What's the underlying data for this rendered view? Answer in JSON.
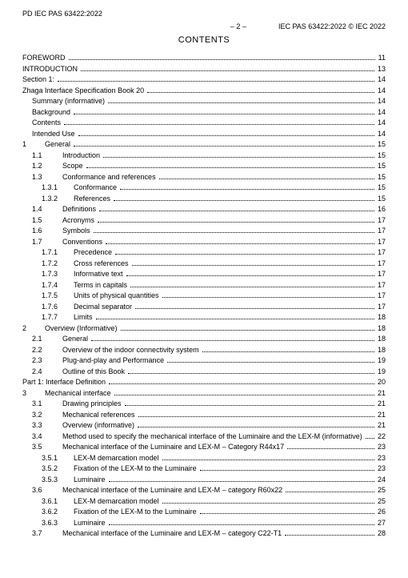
{
  "doc_header_left": "PD IEC PAS 63422:2022",
  "page_number_center": "– 2 –",
  "doc_header_right": "IEC PAS 63422:2022 © IEC 2022",
  "contents_title": "CONTENTS",
  "toc": [
    {
      "indent": 0,
      "num": "",
      "label": "FOREWORD",
      "page": "11"
    },
    {
      "indent": 0,
      "num": "",
      "label": "INTRODUCTION",
      "page": "13"
    },
    {
      "indent": 0,
      "num": "",
      "label": "Section 1:",
      "page": "14"
    },
    {
      "indent": 0,
      "num": "",
      "label": "Zhaga Interface Specification Book 20",
      "page": "14"
    },
    {
      "indent": 1,
      "num": "",
      "label": "Summary (informative)",
      "page": "14"
    },
    {
      "indent": 1,
      "num": "",
      "label": "Background",
      "page": "14"
    },
    {
      "indent": 1,
      "num": "",
      "label": "Contents",
      "page": "14"
    },
    {
      "indent": 1,
      "num": "",
      "label": "Intended Use",
      "page": "14"
    },
    {
      "indent": 0,
      "num": "1",
      "numClass": "num-w1",
      "label": "General",
      "page": "15"
    },
    {
      "indent": 1,
      "num": "1.1",
      "numClass": "num-w2",
      "label": "Introduction",
      "page": "15"
    },
    {
      "indent": 1,
      "num": "1.2",
      "numClass": "num-w2",
      "label": "Scope",
      "page": "15"
    },
    {
      "indent": 1,
      "num": "1.3",
      "numClass": "num-w2",
      "label": "Conformance and references",
      "page": "15"
    },
    {
      "indent": 2,
      "num": "1.3.1",
      "numClass": "num-w3",
      "label": "Conformance",
      "page": "15"
    },
    {
      "indent": 2,
      "num": "1.3.2",
      "numClass": "num-w3",
      "label": "References",
      "page": "15"
    },
    {
      "indent": 1,
      "num": "1.4",
      "numClass": "num-w2",
      "label": "Definitions",
      "page": "16"
    },
    {
      "indent": 1,
      "num": "1.5",
      "numClass": "num-w2",
      "label": "Acronyms",
      "page": "17"
    },
    {
      "indent": 1,
      "num": "1.6",
      "numClass": "num-w2",
      "label": "Symbols",
      "page": "17"
    },
    {
      "indent": 1,
      "num": "1.7",
      "numClass": "num-w2",
      "label": "Conventions",
      "page": "17"
    },
    {
      "indent": 2,
      "num": "1.7.1",
      "numClass": "num-w3",
      "label": "Precedence",
      "page": "17"
    },
    {
      "indent": 2,
      "num": "1.7.2",
      "numClass": "num-w3",
      "label": "Cross references",
      "page": "17"
    },
    {
      "indent": 2,
      "num": "1.7.3",
      "numClass": "num-w3",
      "label": "Informative text",
      "page": "17"
    },
    {
      "indent": 2,
      "num": "1.7.4",
      "numClass": "num-w3",
      "label": "Terms in capitals",
      "page": "17"
    },
    {
      "indent": 2,
      "num": "1.7.5",
      "numClass": "num-w3",
      "label": "Units of physical quantities",
      "page": "17"
    },
    {
      "indent": 2,
      "num": "1.7.6",
      "numClass": "num-w3",
      "label": "Decimal separator",
      "page": "17"
    },
    {
      "indent": 2,
      "num": "1.7.7",
      "numClass": "num-w3",
      "label": "Limits",
      "page": "18"
    },
    {
      "indent": 0,
      "num": "2",
      "numClass": "num-w1",
      "label": "Overview (Informative)",
      "page": "18"
    },
    {
      "indent": 1,
      "num": "2.1",
      "numClass": "num-w2",
      "label": "General",
      "page": "18"
    },
    {
      "indent": 1,
      "num": "2.2",
      "numClass": "num-w2",
      "label": "Overview of the indoor connectivity system",
      "page": "18"
    },
    {
      "indent": 1,
      "num": "2.3",
      "numClass": "num-w2",
      "label": "Plug-and-play and Performance",
      "page": "19"
    },
    {
      "indent": 1,
      "num": "2.4",
      "numClass": "num-w2",
      "label": "Outline of this Book",
      "page": "19"
    },
    {
      "indent": 0,
      "num": "",
      "label": "Part 1: Interface Definition",
      "page": "20"
    },
    {
      "indent": 0,
      "num": "3",
      "numClass": "num-w1",
      "label": "Mechanical interface",
      "page": "21"
    },
    {
      "indent": 1,
      "num": "3.1",
      "numClass": "num-w2",
      "label": "Drawing principles",
      "page": "21"
    },
    {
      "indent": 1,
      "num": "3.2",
      "numClass": "num-w2",
      "label": "Mechanical references",
      "page": "21"
    },
    {
      "indent": 1,
      "num": "3.3",
      "numClass": "num-w2",
      "label": "Overview (informative)",
      "page": "21"
    },
    {
      "indent": 1,
      "num": "3.4",
      "numClass": "num-w2",
      "label": "Method used to specify the mechanical interface of the Luminaire and the LEX-M (informative)",
      "page": "22"
    },
    {
      "indent": 1,
      "num": "3.5",
      "numClass": "num-w2",
      "label": "Mechanical interface of the Luminaire and LEX-M – Category R44x17",
      "page": "23"
    },
    {
      "indent": 2,
      "num": "3.5.1",
      "numClass": "num-w3",
      "label": "LEX-M demarcation model",
      "page": "23"
    },
    {
      "indent": 2,
      "num": "3.5.2",
      "numClass": "num-w3",
      "label": "Fixation of the LEX-M to the Luminaire",
      "page": "23"
    },
    {
      "indent": 2,
      "num": "3.5.3",
      "numClass": "num-w3",
      "label": "Luminaire",
      "page": "24"
    },
    {
      "indent": 1,
      "num": "3.6",
      "numClass": "num-w2",
      "label": "Mechanical interface of the Luminaire and LEX-M – category R60x22",
      "page": "25"
    },
    {
      "indent": 2,
      "num": "3.6.1",
      "numClass": "num-w3",
      "label": "LEX-M demarcation model",
      "page": "25"
    },
    {
      "indent": 2,
      "num": "3.6.2",
      "numClass": "num-w3",
      "label": "Fixation of the LEX-M to the Luminaire",
      "page": "26"
    },
    {
      "indent": 2,
      "num": "3.6.3",
      "numClass": "num-w3",
      "label": "Luminaire",
      "page": "27"
    },
    {
      "indent": 1,
      "num": "3.7",
      "numClass": "num-w2",
      "label": "Mechanical interface of the Luminaire and LEX-M – category C22-T1",
      "page": "28"
    }
  ]
}
